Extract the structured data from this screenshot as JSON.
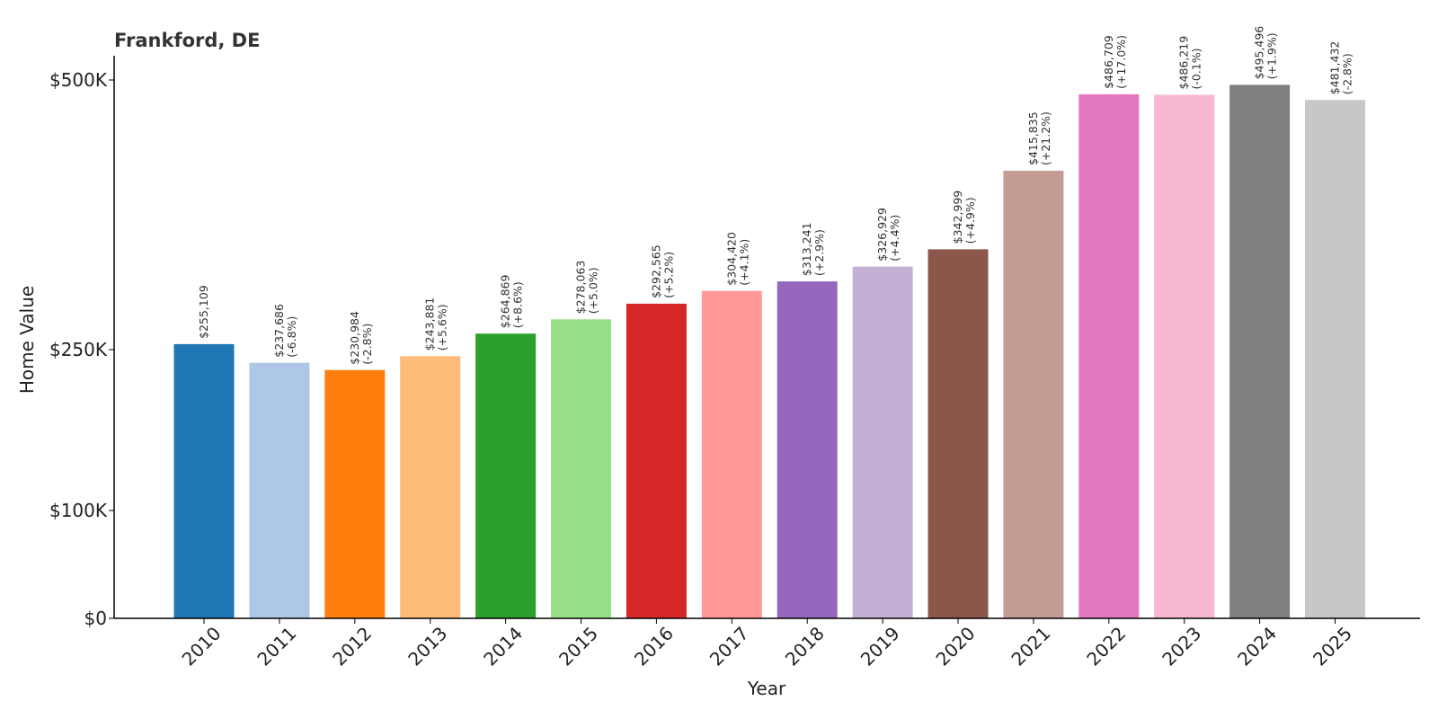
{
  "chart_data": {
    "type": "bar",
    "title": "Frankford, DE",
    "xlabel": "Year",
    "ylabel": "Home Value",
    "categories": [
      "2010",
      "2011",
      "2012",
      "2013",
      "2014",
      "2015",
      "2016",
      "2017",
      "2018",
      "2019",
      "2020",
      "2021",
      "2022",
      "2023",
      "2024",
      "2025"
    ],
    "values": [
      255109,
      237686,
      230984,
      243881,
      264869,
      278063,
      292565,
      304420,
      313241,
      326929,
      342999,
      415835,
      486709,
      486219,
      495496,
      481432
    ],
    "value_labels": [
      "$255,109",
      "$237,686",
      "$230,984",
      "$243,881",
      "$264,869",
      "$278,063",
      "$292,565",
      "$304,420",
      "$313,241",
      "$326,929",
      "$342,999",
      "$415,835",
      "$486,709",
      "$486,219",
      "$495,496",
      "$481,432"
    ],
    "change_labels": [
      "",
      "(-6.8%)",
      "(-2.8%)",
      "(+5.6%)",
      "(+8.6%)",
      "(+5.0%)",
      "(+5.2%)",
      "(+4.1%)",
      "(+2.9%)",
      "(+4.4%)",
      "(+4.9%)",
      "(+21.2%)",
      "(+17.0%)",
      "(-0.1%)",
      "(+1.9%)",
      "(-2.8%)"
    ],
    "colors": [
      "#1f77b4",
      "#aec7e8",
      "#ff7f0e",
      "#ffbb78",
      "#2ca02c",
      "#98df8a",
      "#d62728",
      "#ff9896",
      "#9467bd",
      "#c5b0d5",
      "#8c564b",
      "#c49c94",
      "#e377c2",
      "#f7b6d2",
      "#7f7f7f",
      "#c7c7c7"
    ],
    "yticks": [
      0,
      100000,
      250000,
      500000
    ],
    "ytick_labels": [
      "$0",
      "$100K",
      "$250K",
      "$500K"
    ],
    "ylim": [
      0,
      510000
    ],
    "grid": false,
    "legend": "none"
  }
}
